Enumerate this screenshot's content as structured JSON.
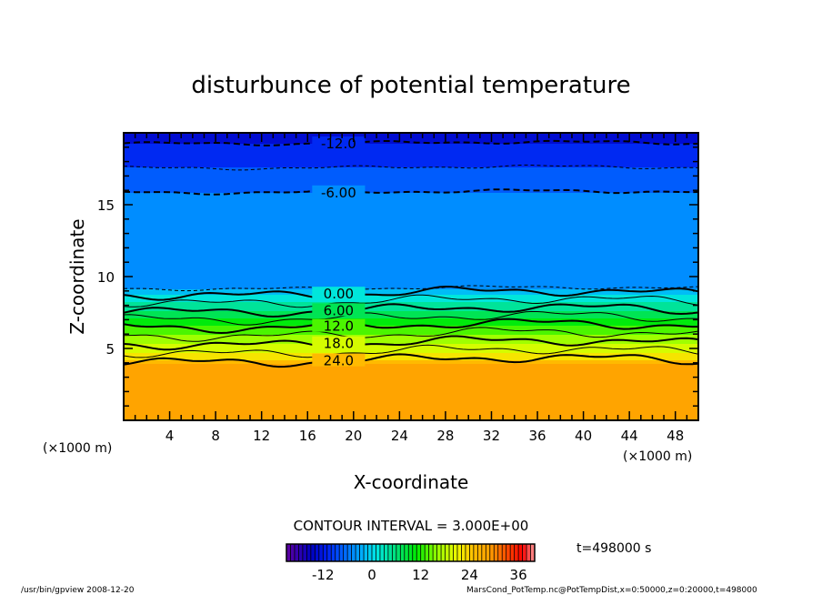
{
  "chart_data": {
    "type": "contour",
    "title": "disturbunce of potential temperature",
    "xlabel": "X-coordinate",
    "ylabel": "Z-coordinate",
    "x_unit_left": "(×1000 m)",
    "x_unit_right": "(×1000 m)",
    "xlim": [
      0,
      50
    ],
    "ylim": [
      0,
      20
    ],
    "xticks": [
      "4",
      "8",
      "12",
      "16",
      "20",
      "24",
      "28",
      "32",
      "36",
      "40",
      "44",
      "48"
    ],
    "xtick_values": [
      4,
      8,
      12,
      16,
      20,
      24,
      28,
      32,
      36,
      40,
      44,
      48
    ],
    "yticks": [
      "5",
      "10",
      "15"
    ],
    "ytick_values": [
      5,
      10,
      15
    ],
    "vertical_profile": {
      "z": [
        0,
        2,
        4.0,
        4.2,
        5.4,
        6.6,
        7.7,
        8.85,
        9.2,
        12,
        15.9,
        17.6,
        19.3,
        20
      ],
      "value": [
        28,
        28,
        27,
        24,
        18,
        12,
        6,
        0,
        -3,
        -4.5,
        -6,
        -9,
        -12,
        -14
      ]
    },
    "contour_lines": [
      {
        "level": -12,
        "z": 19.3,
        "label": "-12.0",
        "labeled": true
      },
      {
        "level": -9,
        "z": 17.6,
        "label": "",
        "labeled": false
      },
      {
        "level": -6,
        "z": 15.9,
        "label": "-6.00",
        "labeled": true
      },
      {
        "level": -3,
        "z": 9.2,
        "label": "",
        "labeled": false
      },
      {
        "level": 0,
        "z": 8.85,
        "label": "0.00",
        "labeled": true
      },
      {
        "level": 3,
        "z": 8.3,
        "label": "",
        "labeled": false
      },
      {
        "level": 6,
        "z": 7.7,
        "label": "6.00",
        "labeled": true
      },
      {
        "level": 9,
        "z": 7.15,
        "label": "",
        "labeled": false
      },
      {
        "level": 12,
        "z": 6.6,
        "label": "12.0",
        "labeled": true
      },
      {
        "level": 15,
        "z": 6.0,
        "label": "",
        "labeled": false
      },
      {
        "level": 18,
        "z": 5.4,
        "label": "18.0",
        "labeled": true
      },
      {
        "level": 21,
        "z": 4.8,
        "label": "",
        "labeled": false
      },
      {
        "level": 24,
        "z": 4.2,
        "label": "24.0",
        "labeled": true
      }
    ],
    "contour_interval_text": "CONTOUR INTERVAL = 3.000E+00",
    "colorbar": {
      "range": [
        -21,
        40
      ],
      "ticks": [
        "-12",
        "0",
        "12",
        "24",
        "36"
      ],
      "tick_values": [
        -12,
        0,
        12,
        24,
        36
      ]
    },
    "time_label": "t=498000 s",
    "grid": false
  },
  "footer": {
    "program": "/usr/bin/gpview   2008-12-20",
    "source": "MarsCond_PotTemp.nc@PotTempDist,x=0:50000,z=0:20000,t=498000"
  },
  "colors": {
    "purple": "#6000a0",
    "blue": "#0020f0",
    "lightblue": "#00a0ff",
    "green": "#00e000",
    "yellow": "#ffff00",
    "orange": "#ffa500",
    "red": "#ff0000"
  }
}
